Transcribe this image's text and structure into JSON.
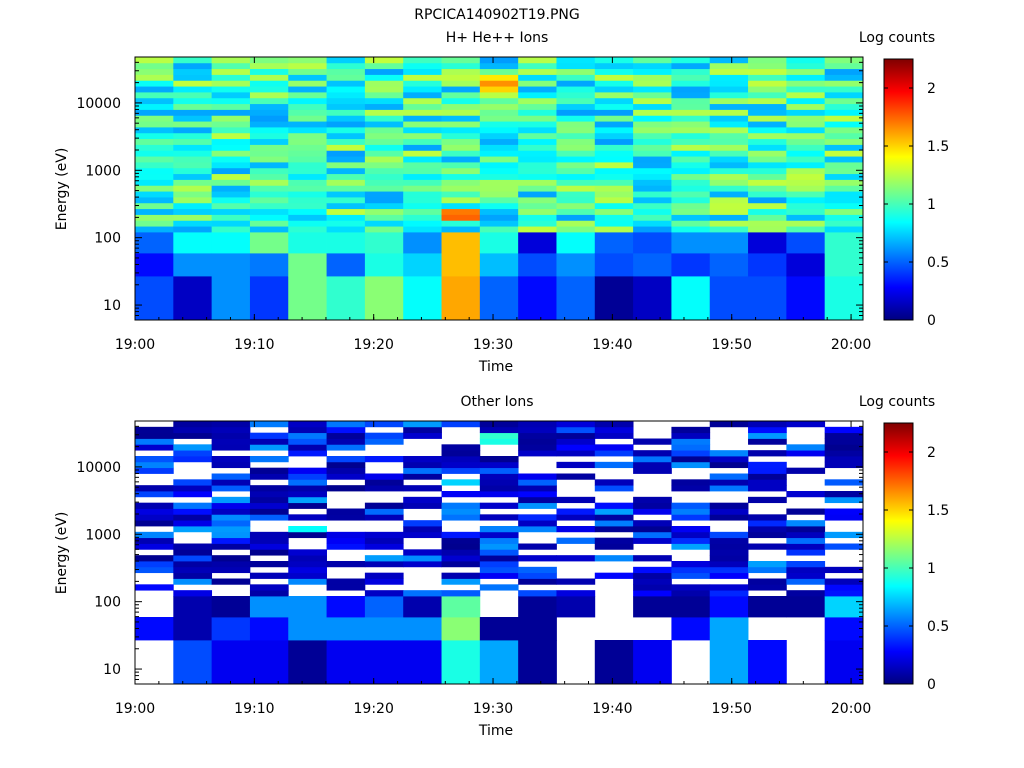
{
  "figure_title": "RPCICA140902T19.PNG",
  "colorscale": [
    "#00007f",
    "#0000ff",
    "#007fff",
    "#00ffff",
    "#7fff7f",
    "#ffff00",
    "#ff7f00",
    "#ff0000",
    "#7f0000"
  ],
  "chart_data": [
    {
      "type": "heatmap",
      "title": "H+ He++ Ions",
      "xlabel": "Time",
      "ylabel": "Energy (eV)",
      "colorbar_label": "Log counts",
      "yscale": "log",
      "x_range": [
        "19:00",
        "20:01"
      ],
      "y_range": [
        6,
        48000
      ],
      "color_range": [
        0,
        2.25
      ],
      "x_ticks": [
        "19:00",
        "19:10",
        "19:20",
        "19:30",
        "19:40",
        "19:50",
        "20:00"
      ],
      "y_ticks": [
        "10",
        "100",
        "1000",
        "10000"
      ],
      "colorbar_ticks": [
        "0",
        "0.5",
        "1",
        "1.5",
        "2"
      ],
      "time_bins": 19,
      "energy_bins": 33,
      "energy_range_ev": [
        6,
        48000
      ],
      "seed": 11,
      "low_energy_values": [
        [
          0.45,
          0.15,
          0.6,
          0.4,
          1.1,
          0.95,
          1.15,
          0.85,
          1.6,
          0.5,
          0.3,
          0.5,
          0.05,
          0.15,
          0.85,
          0.45,
          0.45,
          0.3,
          0.9
        ],
        [
          0.3,
          0.6,
          0.6,
          0.55,
          1.1,
          0.5,
          0.9,
          0.75,
          1.55,
          0.7,
          0.45,
          0.6,
          0.45,
          0.5,
          0.4,
          0.5,
          0.4,
          0.2,
          0.95
        ],
        [
          0.5,
          0.85,
          0.85,
          1.1,
          0.9,
          0.9,
          0.95,
          0.6,
          1.55,
          0.9,
          0.2,
          0.85,
          0.5,
          0.45,
          0.6,
          0.6,
          0.2,
          0.45,
          0.95
        ]
      ],
      "base_level": 0.95,
      "hot_spots": [
        {
          "col": 8,
          "row": 5,
          "value": 1.75
        },
        {
          "col": 8,
          "row": 6,
          "value": 1.7
        },
        {
          "col": 9,
          "row": 28,
          "value": 1.65
        },
        {
          "col": 9,
          "row": 27,
          "value": 1.5
        },
        {
          "col": 9,
          "row": 29,
          "value": 1.45
        }
      ]
    },
    {
      "type": "heatmap",
      "title": "Other Ions",
      "xlabel": "Time",
      "ylabel": "Energy (eV)",
      "colorbar_label": "Log counts",
      "yscale": "log",
      "x_range": [
        "19:00",
        "20:01"
      ],
      "y_range": [
        6,
        48000
      ],
      "color_range": [
        0,
        2.25
      ],
      "x_ticks": [
        "19:00",
        "19:10",
        "19:20",
        "19:30",
        "19:40",
        "19:50",
        "20:00"
      ],
      "y_ticks": [
        "10",
        "100",
        "1000",
        "10000"
      ],
      "colorbar_ticks": [
        "0",
        "0.5",
        "1",
        "1.5",
        "2"
      ],
      "time_bins": 19,
      "energy_bins": 33,
      "energy_range_ev": [
        6,
        48000
      ],
      "seed": 29,
      "low_energy_values": [
        [
          null,
          0.45,
          0.25,
          0.25,
          0.05,
          0.25,
          0.25,
          0.25,
          0.9,
          0.65,
          0.05,
          null,
          0.05,
          0.25,
          null,
          0.65,
          0.3,
          null,
          0.25
        ],
        [
          0.3,
          0.1,
          0.4,
          0.3,
          0.6,
          0.6,
          0.6,
          0.6,
          1.15,
          0.05,
          0.05,
          null,
          null,
          null,
          0.3,
          0.65,
          null,
          null,
          0.3
        ],
        [
          null,
          0.1,
          0.05,
          0.6,
          0.6,
          0.3,
          0.5,
          0.1,
          1.05,
          null,
          0.05,
          0.1,
          null,
          0.05,
          0.05,
          0.3,
          0.05,
          0.05,
          0.75
        ]
      ],
      "base_level": 0.3,
      "hot_spots": [
        {
          "col": 9,
          "row": 30,
          "value": 0.95
        },
        {
          "col": 9,
          "row": 29,
          "value": 0.9
        },
        {
          "col": 4,
          "row": 14,
          "value": 0.85
        },
        {
          "col": 8,
          "row": 22,
          "value": 0.75
        }
      ]
    }
  ]
}
